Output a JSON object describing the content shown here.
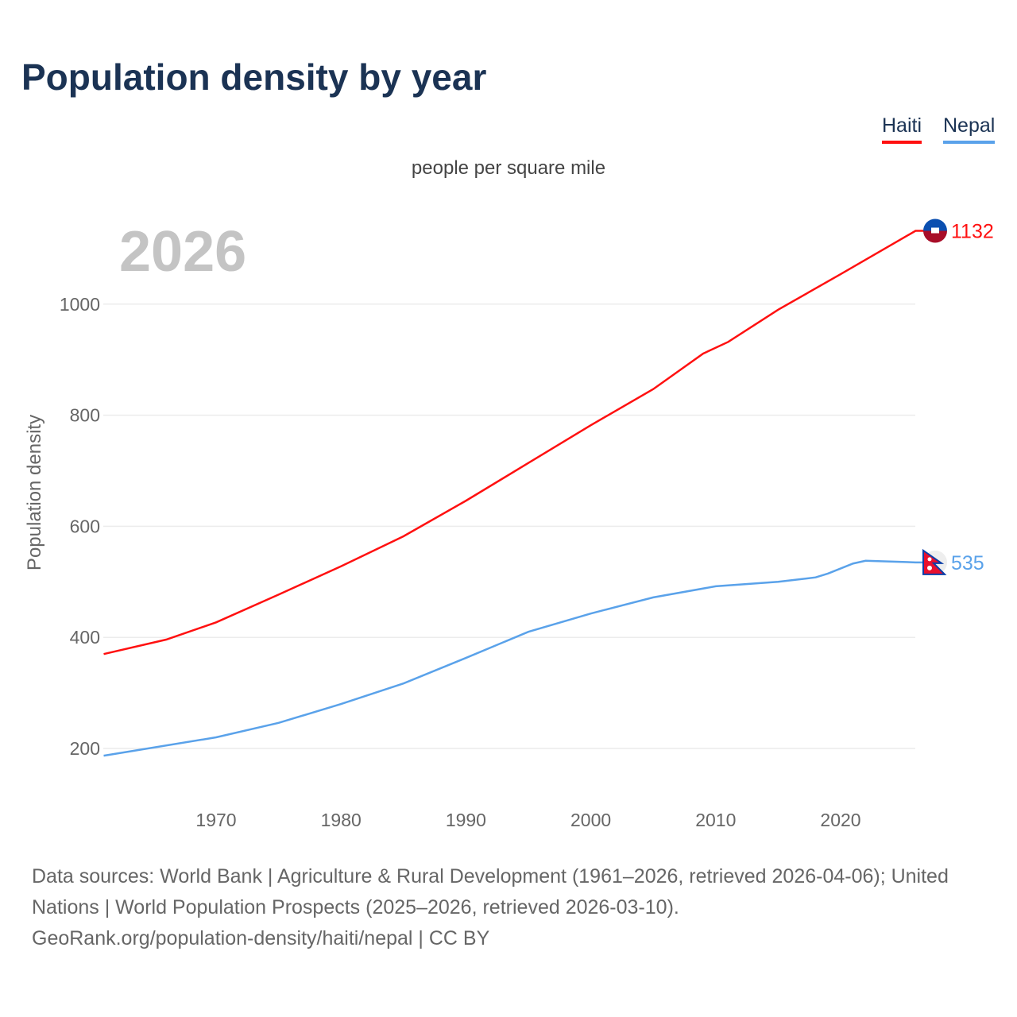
{
  "title": "Population density by year",
  "legend": [
    {
      "label": "Haiti",
      "color": "#ff1010"
    },
    {
      "label": "Nepal",
      "color": "#5aa2ea"
    }
  ],
  "footer": {
    "line1": "Data sources: World Bank | Agriculture & Rural Development (1961–2026, retrieved 2026-04-06); United",
    "line2": "Nations | World Population Prospects (2025–2026, retrieved 2026-03-10).",
    "line3": "GeoRank.org/population-density/haiti/nepal | CC BY"
  },
  "chart_data": {
    "type": "line",
    "title": "Population density by year",
    "subtitle": "people per square mile",
    "ylabel": "Population density",
    "xlabel": "",
    "year_watermark": "2026",
    "xlim": [
      1961,
      2026
    ],
    "ylim": [
      130,
      1160
    ],
    "xticks": [
      1970,
      1980,
      1990,
      2000,
      2010,
      2020
    ],
    "yticks": [
      200,
      400,
      600,
      800,
      1000
    ],
    "grid": true,
    "legend_position": "top-right",
    "series": [
      {
        "name": "Haiti",
        "color": "#ff1010",
        "end_label": "1132",
        "x": [
          1961,
          1966,
          1970,
          1975,
          1980,
          1985,
          1990,
          1995,
          2000,
          2005,
          2009,
          2011,
          2015,
          2020,
          2026
        ],
        "y": [
          370,
          396,
          427,
          477,
          528,
          582,
          646,
          714,
          782,
          847,
          911,
          932,
          990,
          1054,
          1132
        ]
      },
      {
        "name": "Nepal",
        "color": "#5aa2ea",
        "end_label": "535",
        "x": [
          1961,
          1970,
          1975,
          1980,
          1985,
          1990,
          1995,
          2000,
          2005,
          2010,
          2015,
          2018,
          2019,
          2021,
          2022,
          2026
        ],
        "y": [
          187,
          220,
          246,
          280,
          317,
          363,
          410,
          443,
          472,
          492,
          500,
          508,
          515,
          533,
          538,
          535
        ]
      }
    ]
  }
}
